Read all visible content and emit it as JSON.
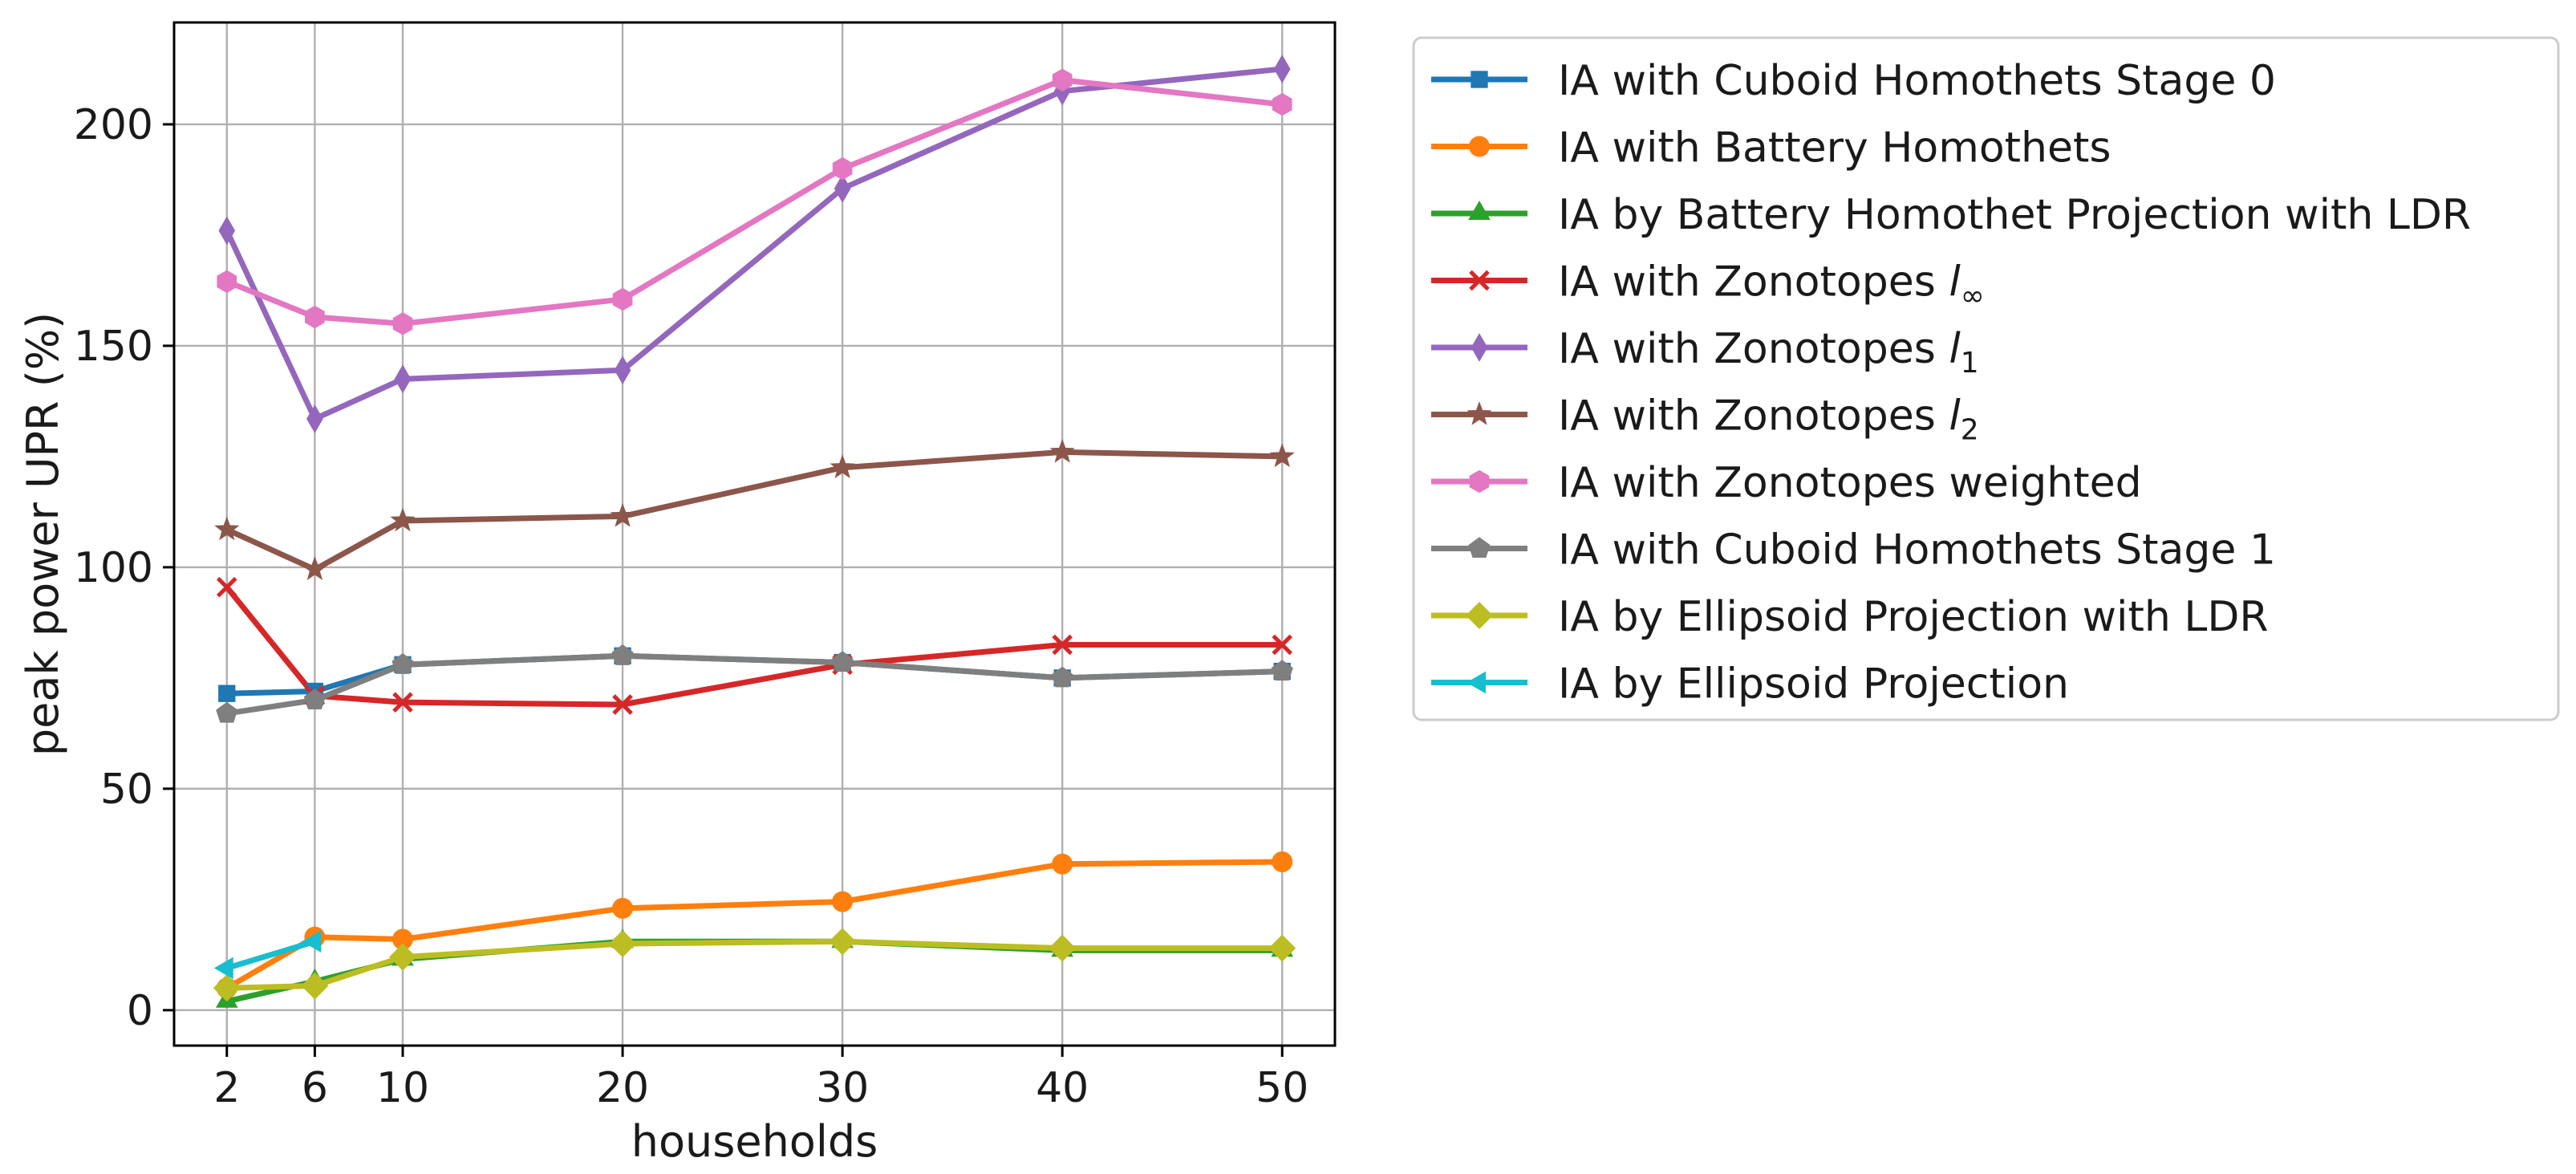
{
  "chart_data": {
    "type": "line",
    "title": "",
    "xlabel": "households",
    "ylabel": "peak power UPR (%)",
    "x_ticks": [
      2,
      6,
      10,
      20,
      30,
      40,
      50
    ],
    "x_tick_labels": [
      "2",
      "6",
      "10",
      "20",
      "30",
      "40",
      "50"
    ],
    "y_ticks": [
      0,
      50,
      100,
      150,
      200
    ],
    "y_tick_labels": [
      "0",
      "50",
      "100",
      "150",
      "200"
    ],
    "xlim": [
      -0.4,
      52.4
    ],
    "ylim": [
      -8,
      223
    ],
    "grid": true,
    "legend_location": "outside-right",
    "series": [
      {
        "name": "IA with Cuboid Homothets Stage 0",
        "label_main": "IA with Cuboid Homothets Stage 0",
        "label_italic": "",
        "label_sub": "",
        "color": "#1f77b4",
        "marker": "square",
        "x": [
          2,
          6,
          10,
          20,
          30,
          40,
          50
        ],
        "y": [
          71.5,
          72,
          78,
          80,
          78.5,
          75,
          76.5
        ]
      },
      {
        "name": "IA with Battery Homothets",
        "label_main": "IA with Battery Homothets",
        "label_italic": "",
        "label_sub": "",
        "color": "#ff7f0e",
        "marker": "circle",
        "x": [
          2,
          6,
          10,
          20,
          30,
          40,
          50
        ],
        "y": [
          5,
          16.5,
          16,
          23,
          24.5,
          33,
          33.5
        ]
      },
      {
        "name": "IA by Battery Homothet Projection with LDR",
        "label_main": "IA by Battery Homothet Projection with LDR",
        "label_italic": "",
        "label_sub": "",
        "color": "#2ca02c",
        "marker": "triangle-up",
        "x": [
          2,
          6,
          10,
          20,
          30,
          40,
          50
        ],
        "y": [
          2,
          6.5,
          11.5,
          15.5,
          15.5,
          13.5,
          13.5
        ]
      },
      {
        "name": "IA with Zonotopes l∞",
        "label_main": "IA with Zonotopes ",
        "label_italic": "l",
        "label_sub": "∞",
        "color": "#d62728",
        "marker": "x",
        "x": [
          2,
          6,
          10,
          20,
          30,
          40,
          50
        ],
        "y": [
          95.5,
          71,
          69.5,
          69,
          78,
          82.5,
          82.5
        ]
      },
      {
        "name": "IA with Zonotopes l1",
        "label_main": "IA with Zonotopes ",
        "label_italic": "l",
        "label_sub": "1",
        "color": "#9467bd",
        "marker": "thin-diamond",
        "x": [
          2,
          6,
          10,
          20,
          30,
          40,
          50
        ],
        "y": [
          176,
          133.5,
          142.5,
          144.5,
          185.5,
          207.5,
          212.5
        ]
      },
      {
        "name": "IA with Zonotopes l2",
        "label_main": "IA with Zonotopes ",
        "label_italic": "l",
        "label_sub": "2",
        "color": "#8c564b",
        "marker": "star",
        "x": [
          2,
          6,
          10,
          20,
          30,
          40,
          50
        ],
        "y": [
          108.5,
          99.5,
          110.5,
          111.5,
          122.5,
          126,
          125
        ]
      },
      {
        "name": "IA with Zonotopes weighted",
        "label_main": "IA with Zonotopes weighted",
        "label_italic": "",
        "label_sub": "",
        "color": "#e377c2",
        "marker": "hexagon",
        "x": [
          2,
          6,
          10,
          20,
          30,
          40,
          50
        ],
        "y": [
          164.5,
          156.5,
          155,
          160.5,
          190,
          210,
          204.5
        ]
      },
      {
        "name": "IA with Cuboid Homothets Stage 1",
        "label_main": "IA with Cuboid Homothets Stage 1",
        "label_italic": "",
        "label_sub": "",
        "color": "#7f7f7f",
        "marker": "pentagon",
        "x": [
          2,
          6,
          10,
          20,
          30,
          40,
          50
        ],
        "y": [
          67,
          70,
          78,
          80,
          78.5,
          75,
          76.5
        ]
      },
      {
        "name": "IA by Ellipsoid Projection with LDR",
        "label_main": "IA by Ellipsoid Projection with LDR",
        "label_italic": "",
        "label_sub": "",
        "color": "#bcbd22",
        "marker": "diamond",
        "x": [
          2,
          6,
          10,
          20,
          30,
          40,
          50
        ],
        "y": [
          5,
          5.5,
          12,
          15,
          15.5,
          14,
          14
        ]
      },
      {
        "name": "IA by Ellipsoid Projection",
        "label_main": "IA by Ellipsoid Projection",
        "label_italic": "",
        "label_sub": "",
        "color": "#17becf",
        "marker": "triangle-left",
        "x": [
          2,
          6
        ],
        "y": [
          9.5,
          15.5
        ]
      }
    ]
  }
}
